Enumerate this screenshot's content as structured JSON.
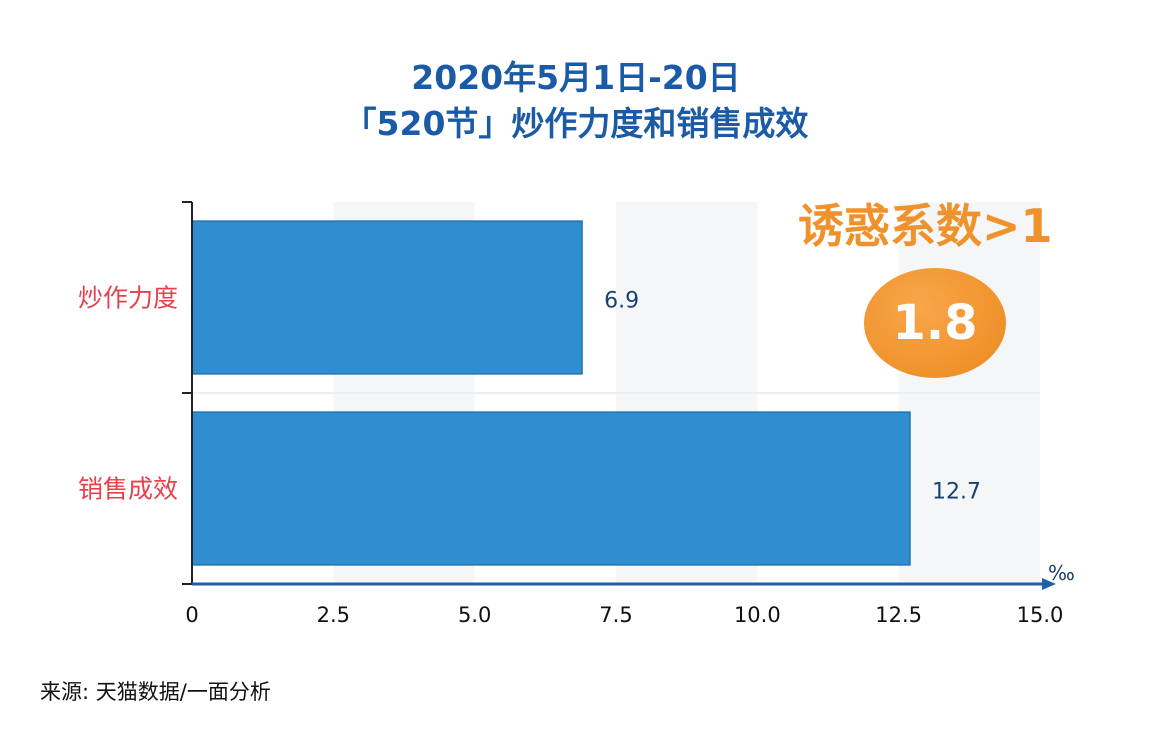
{
  "chart_data": {
    "type": "bar",
    "orientation": "horizontal",
    "title": "2020年5月1日-20日",
    "subtitle": "「520节」炒作力度和销售成效",
    "categories": [
      "炒作力度",
      "销售成效"
    ],
    "values": [
      6.9,
      12.7
    ],
    "data_labels": [
      "6.9",
      "12.7"
    ],
    "xlim": [
      0,
      15.0
    ],
    "xticks": [
      "0",
      "2.5",
      "5.0",
      "7.5",
      "10.0",
      "12.5",
      "15.0"
    ],
    "xunit": "‰",
    "grid": false,
    "legend": "none",
    "annotation": {
      "heading": "诱惑系数>1",
      "value": "1.8"
    }
  },
  "source": "来源: 天猫数据/一面分析",
  "colors": {
    "bar": "#2e8ecf",
    "bar_border": "#2474b0",
    "title": "#1a5aa6",
    "category_label": "#e8404b",
    "data_label": "#1a3f73",
    "axis": "#1f5fa8",
    "badge": "#f0922b"
  }
}
